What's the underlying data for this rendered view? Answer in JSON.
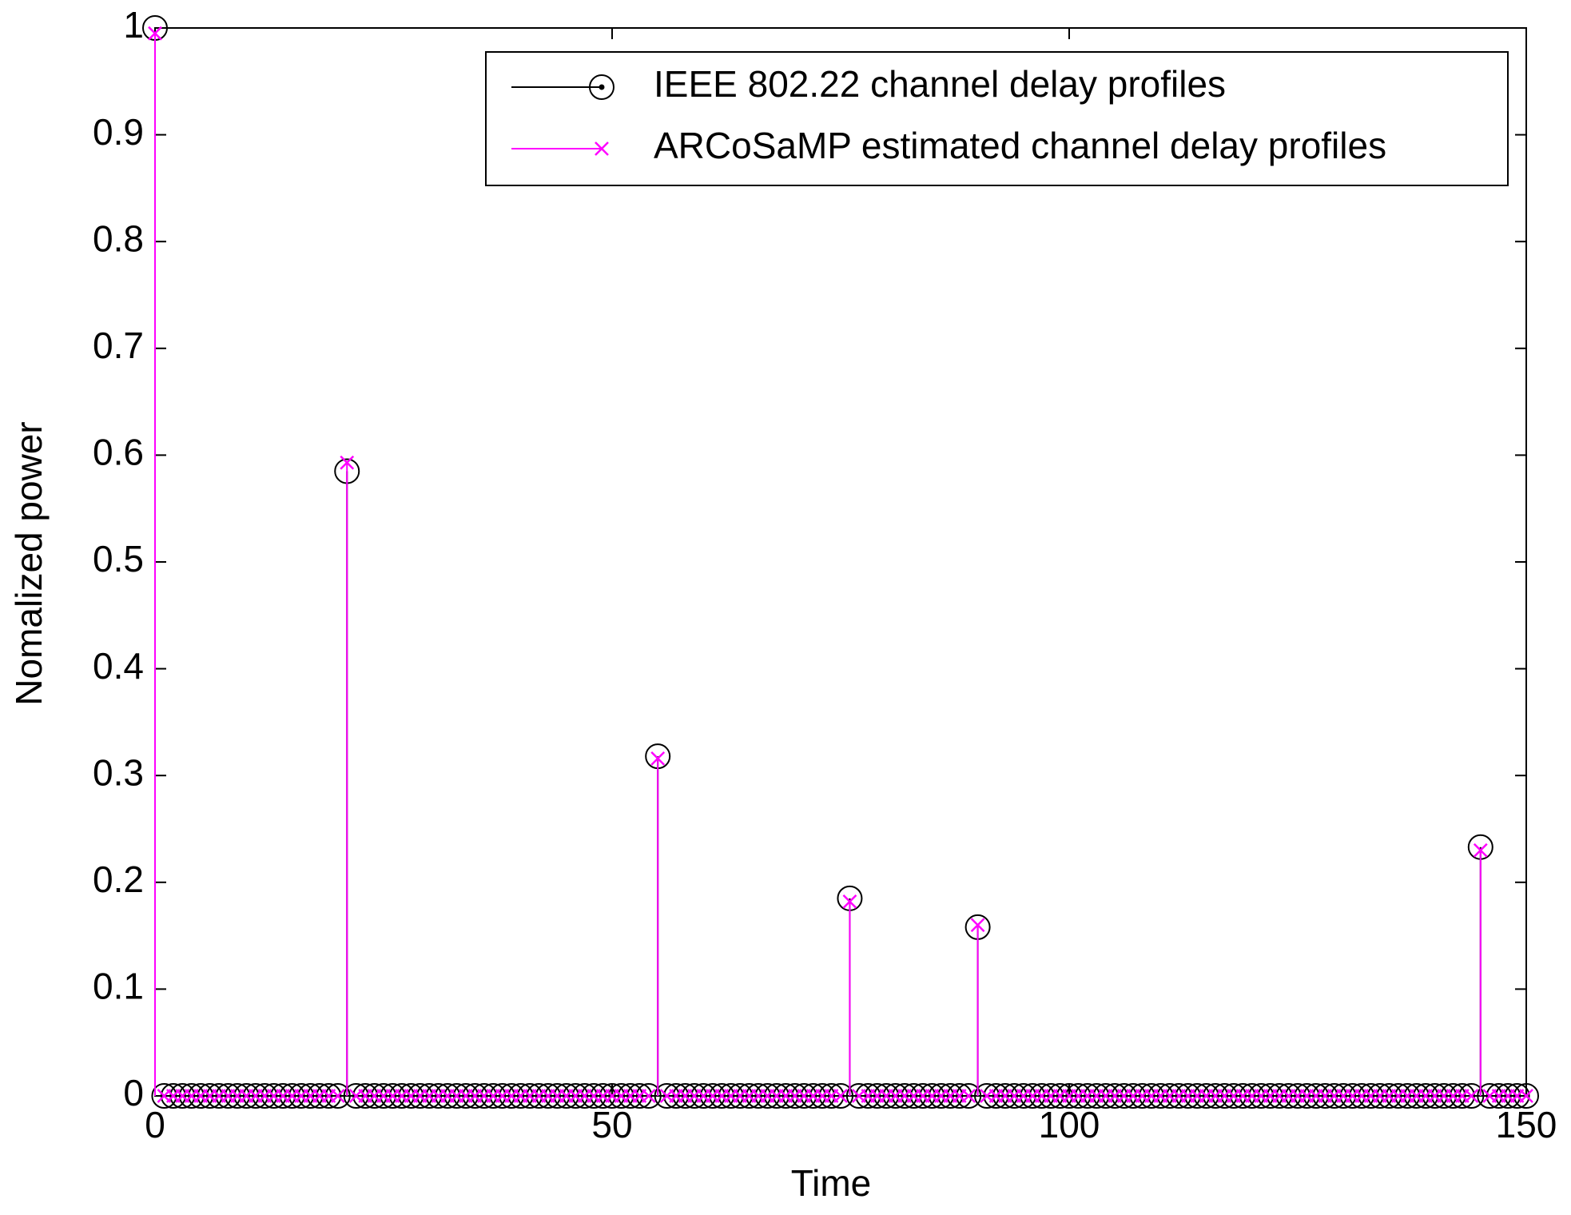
{
  "chart_data": {
    "type": "stem",
    "xlabel": "Time",
    "ylabel": "Nomalized power",
    "xlim": [
      0,
      150
    ],
    "xticks": [
      0,
      50,
      100,
      150
    ],
    "ylim": [
      0,
      1
    ],
    "yticks": [
      0,
      0.1,
      0.2,
      0.3,
      0.4,
      0.5,
      0.6,
      0.7,
      0.8,
      0.9,
      1
    ],
    "legend": "upper right",
    "x": [
      0,
      1,
      2,
      3,
      4,
      5,
      6,
      7,
      8,
      9,
      10,
      11,
      12,
      13,
      14,
      15,
      16,
      17,
      18,
      19,
      20,
      21,
      22,
      23,
      24,
      25,
      26,
      27,
      28,
      29,
      30,
      31,
      32,
      33,
      34,
      35,
      36,
      37,
      38,
      39,
      40,
      41,
      42,
      43,
      44,
      45,
      46,
      47,
      48,
      49,
      50,
      51,
      52,
      53,
      54,
      55,
      56,
      57,
      58,
      59,
      60,
      61,
      62,
      63,
      64,
      65,
      66,
      67,
      68,
      69,
      70,
      71,
      72,
      73,
      74,
      75,
      76,
      77,
      78,
      79,
      80,
      81,
      82,
      83,
      84,
      85,
      86,
      87,
      88,
      89,
      90,
      91,
      92,
      93,
      94,
      95,
      96,
      97,
      98,
      99,
      100,
      101,
      102,
      103,
      104,
      105,
      106,
      107,
      108,
      109,
      110,
      111,
      112,
      113,
      114,
      115,
      116,
      117,
      118,
      119,
      120,
      121,
      122,
      123,
      124,
      125,
      126,
      127,
      128,
      129,
      130,
      131,
      132,
      133,
      134,
      135,
      136,
      137,
      138,
      139,
      140,
      141,
      142,
      143,
      144,
      145,
      146,
      147,
      148,
      149,
      150
    ],
    "series": [
      {
        "name": "IEEE 802.22 channel delay profiles",
        "color": "#000000",
        "marker": "circle",
        "values": [
          1,
          0,
          0,
          0,
          0,
          0,
          0,
          0,
          0,
          0,
          0,
          0,
          0,
          0,
          0,
          0,
          0,
          0,
          0,
          0,
          0,
          0.585,
          0,
          0,
          0,
          0,
          0,
          0,
          0,
          0,
          0,
          0,
          0,
          0,
          0,
          0,
          0,
          0,
          0,
          0,
          0,
          0,
          0,
          0,
          0,
          0,
          0,
          0,
          0,
          0,
          0,
          0,
          0,
          0,
          0,
          0.318,
          0,
          0,
          0,
          0,
          0,
          0,
          0,
          0,
          0,
          0,
          0,
          0,
          0,
          0,
          0,
          0,
          0,
          0,
          0,
          0,
          0.185,
          0,
          0,
          0,
          0,
          0,
          0,
          0,
          0,
          0,
          0,
          0,
          0,
          0,
          0.158,
          0,
          0,
          0,
          0,
          0,
          0,
          0,
          0,
          0,
          0,
          0,
          0,
          0,
          0,
          0,
          0,
          0,
          0,
          0,
          0,
          0,
          0,
          0,
          0,
          0,
          0,
          0,
          0,
          0,
          0,
          0,
          0,
          0,
          0,
          0,
          0,
          0,
          0,
          0,
          0,
          0,
          0,
          0,
          0,
          0,
          0,
          0,
          0,
          0,
          0,
          0,
          0,
          0,
          0,
          0.233,
          0,
          0,
          0,
          0,
          0
        ]
      },
      {
        "name": "ARCoSaMP estimated channel delay profiles",
        "color": "#ff00ff",
        "marker": "x",
        "values": [
          0.995,
          0,
          0,
          0,
          0,
          0,
          0,
          0,
          0,
          0,
          0,
          0,
          0,
          0,
          0,
          0,
          0,
          0,
          0,
          0,
          0,
          0.593,
          0,
          0,
          0,
          0,
          0,
          0,
          0,
          0,
          0,
          0,
          0,
          0,
          0,
          0,
          0,
          0,
          0,
          0,
          0,
          0,
          0,
          0,
          0,
          0,
          0,
          0,
          0,
          0,
          0,
          0,
          0,
          0,
          0,
          0.316,
          0,
          0,
          0,
          0,
          0,
          0,
          0,
          0,
          0,
          0,
          0,
          0,
          0,
          0,
          0,
          0,
          0,
          0,
          0,
          0,
          0.182,
          0,
          0,
          0,
          0,
          0,
          0,
          0,
          0,
          0,
          0,
          0,
          0,
          0,
          0.16,
          0,
          0,
          0,
          0,
          0,
          0,
          0,
          0,
          0,
          0,
          0,
          0,
          0,
          0,
          0,
          0,
          0,
          0,
          0,
          0,
          0,
          0,
          0,
          0,
          0,
          0,
          0,
          0,
          0,
          0,
          0,
          0,
          0,
          0,
          0,
          0,
          0,
          0,
          0,
          0,
          0,
          0,
          0,
          0,
          0,
          0,
          0,
          0,
          0,
          0,
          0,
          0,
          0,
          0,
          0.23,
          0,
          0,
          0,
          0,
          0
        ]
      }
    ]
  }
}
